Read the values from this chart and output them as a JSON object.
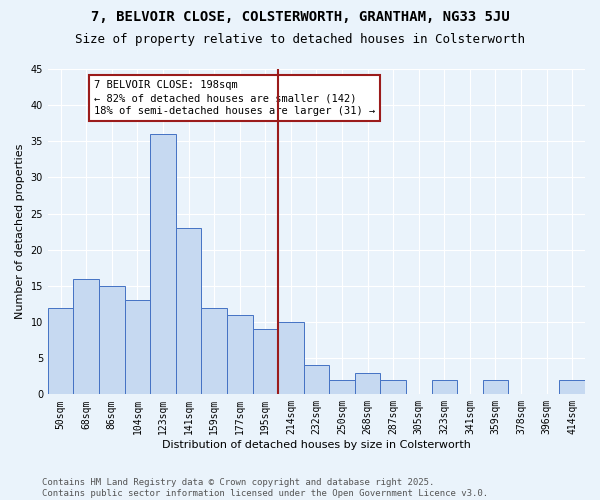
{
  "title1": "7, BELVOIR CLOSE, COLSTERWORTH, GRANTHAM, NG33 5JU",
  "title2": "Size of property relative to detached houses in Colsterworth",
  "xlabel": "Distribution of detached houses by size in Colsterworth",
  "ylabel": "Number of detached properties",
  "bar_labels": [
    "50sqm",
    "68sqm",
    "86sqm",
    "104sqm",
    "123sqm",
    "141sqm",
    "159sqm",
    "177sqm",
    "195sqm",
    "214sqm",
    "232sqm",
    "250sqm",
    "268sqm",
    "287sqm",
    "305sqm",
    "323sqm",
    "341sqm",
    "359sqm",
    "378sqm",
    "396sqm",
    "414sqm"
  ],
  "bar_values": [
    12,
    16,
    15,
    13,
    36,
    23,
    12,
    11,
    9,
    10,
    4,
    2,
    3,
    2,
    0,
    2,
    0,
    2,
    0,
    0,
    2
  ],
  "bar_color": "#c6d9f1",
  "bar_edge_color": "#4472c4",
  "vline_index": 8,
  "vline_color": "#9b1b1b",
  "annotation_text": "7 BELVOIR CLOSE: 198sqm\n← 82% of detached houses are smaller (142)\n18% of semi-detached houses are larger (31) →",
  "annotation_box_color": "#ffffff",
  "annotation_box_edge_color": "#9b1b1b",
  "ylim": [
    0,
    45
  ],
  "yticks": [
    0,
    5,
    10,
    15,
    20,
    25,
    30,
    35,
    40,
    45
  ],
  "footer_text": "Contains HM Land Registry data © Crown copyright and database right 2025.\nContains public sector information licensed under the Open Government Licence v3.0.",
  "bg_color": "#eaf3fb",
  "grid_color": "#ffffff",
  "title1_fontsize": 10,
  "title2_fontsize": 9,
  "axis_label_fontsize": 8,
  "tick_fontsize": 7,
  "annotation_fontsize": 7.5,
  "footer_fontsize": 6.5
}
